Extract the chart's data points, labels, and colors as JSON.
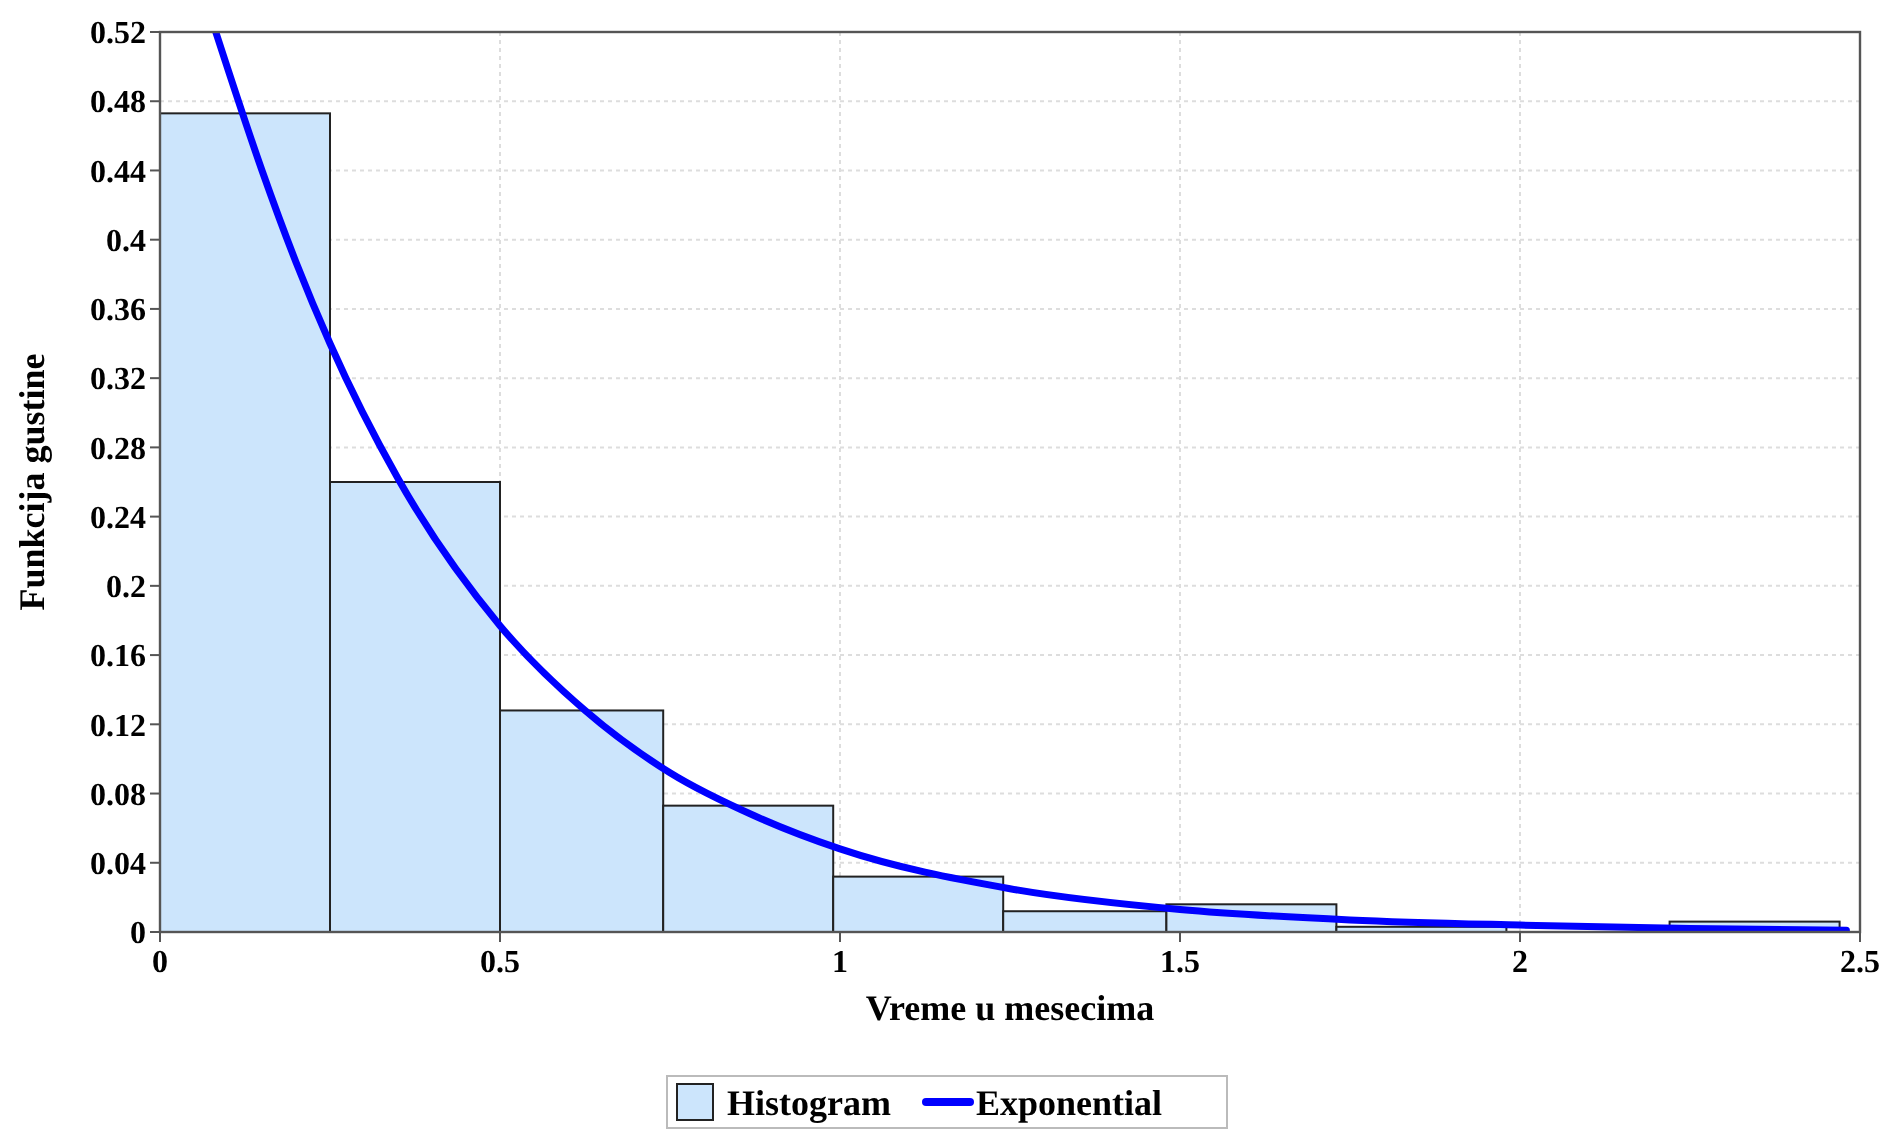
{
  "chart_data": {
    "type": "histogram",
    "xlabel": "Vreme u mesecima",
    "ylabel": "Funkcija gustine",
    "xlim": [
      0,
      2.5
    ],
    "xticks": [
      0,
      {
        "value": 0.5,
        "label": "0.5"
      },
      1,
      {
        "value": 1.5,
        "label": "1.5"
      },
      2,
      {
        "value": 2.5,
        "label": "2.5"
      }
    ],
    "ylim": [
      0,
      0.52
    ],
    "yticks": [
      0,
      {
        "value": 0.04,
        "label": "0.04"
      },
      {
        "value": 0.08,
        "label": "0.08"
      },
      {
        "value": 0.12,
        "label": "0.12"
      },
      {
        "value": 0.16,
        "label": "0.16"
      },
      {
        "value": 0.2,
        "label": "0.2"
      },
      {
        "value": 0.24,
        "label": "0.24"
      },
      {
        "value": 0.28,
        "label": "0.28"
      },
      {
        "value": 0.32,
        "label": "0.32"
      },
      {
        "value": 0.36,
        "label": "0.36"
      },
      {
        "value": 0.4,
        "label": "0.4"
      },
      {
        "value": 0.44,
        "label": "0.44"
      },
      {
        "value": 0.48,
        "label": "0.48"
      },
      {
        "value": 0.52,
        "label": "0.52"
      }
    ],
    "grid": true,
    "legend": "bottom",
    "series": [
      {
        "name": "Histogram",
        "color": "#cce5fc",
        "bins": [
          0,
          0.25,
          0.5,
          0.74,
          0.99,
          1.24,
          1.48,
          1.73,
          1.98,
          2.22,
          2.47
        ],
        "values": [
          0.473,
          0.26,
          0.128,
          0.073,
          0.032,
          0.012,
          0.016,
          0.003,
          null,
          0.006
        ]
      },
      {
        "name": "Exponential",
        "type": "line",
        "color": "#0000ff",
        "x": [
          0.082,
          0.15,
          0.2,
          0.25,
          0.35,
          0.5,
          0.625,
          0.75,
          0.875,
          1,
          1.25,
          1.5,
          1.75,
          2,
          2.25,
          2.48
        ],
        "values": [
          0.52,
          0.44,
          0.387,
          0.34,
          0.262,
          0.177,
          0.128,
          0.092,
          0.067,
          0.048,
          0.025,
          0.013,
          0.007,
          0.004,
          0.002,
          0.001
        ]
      }
    ]
  }
}
